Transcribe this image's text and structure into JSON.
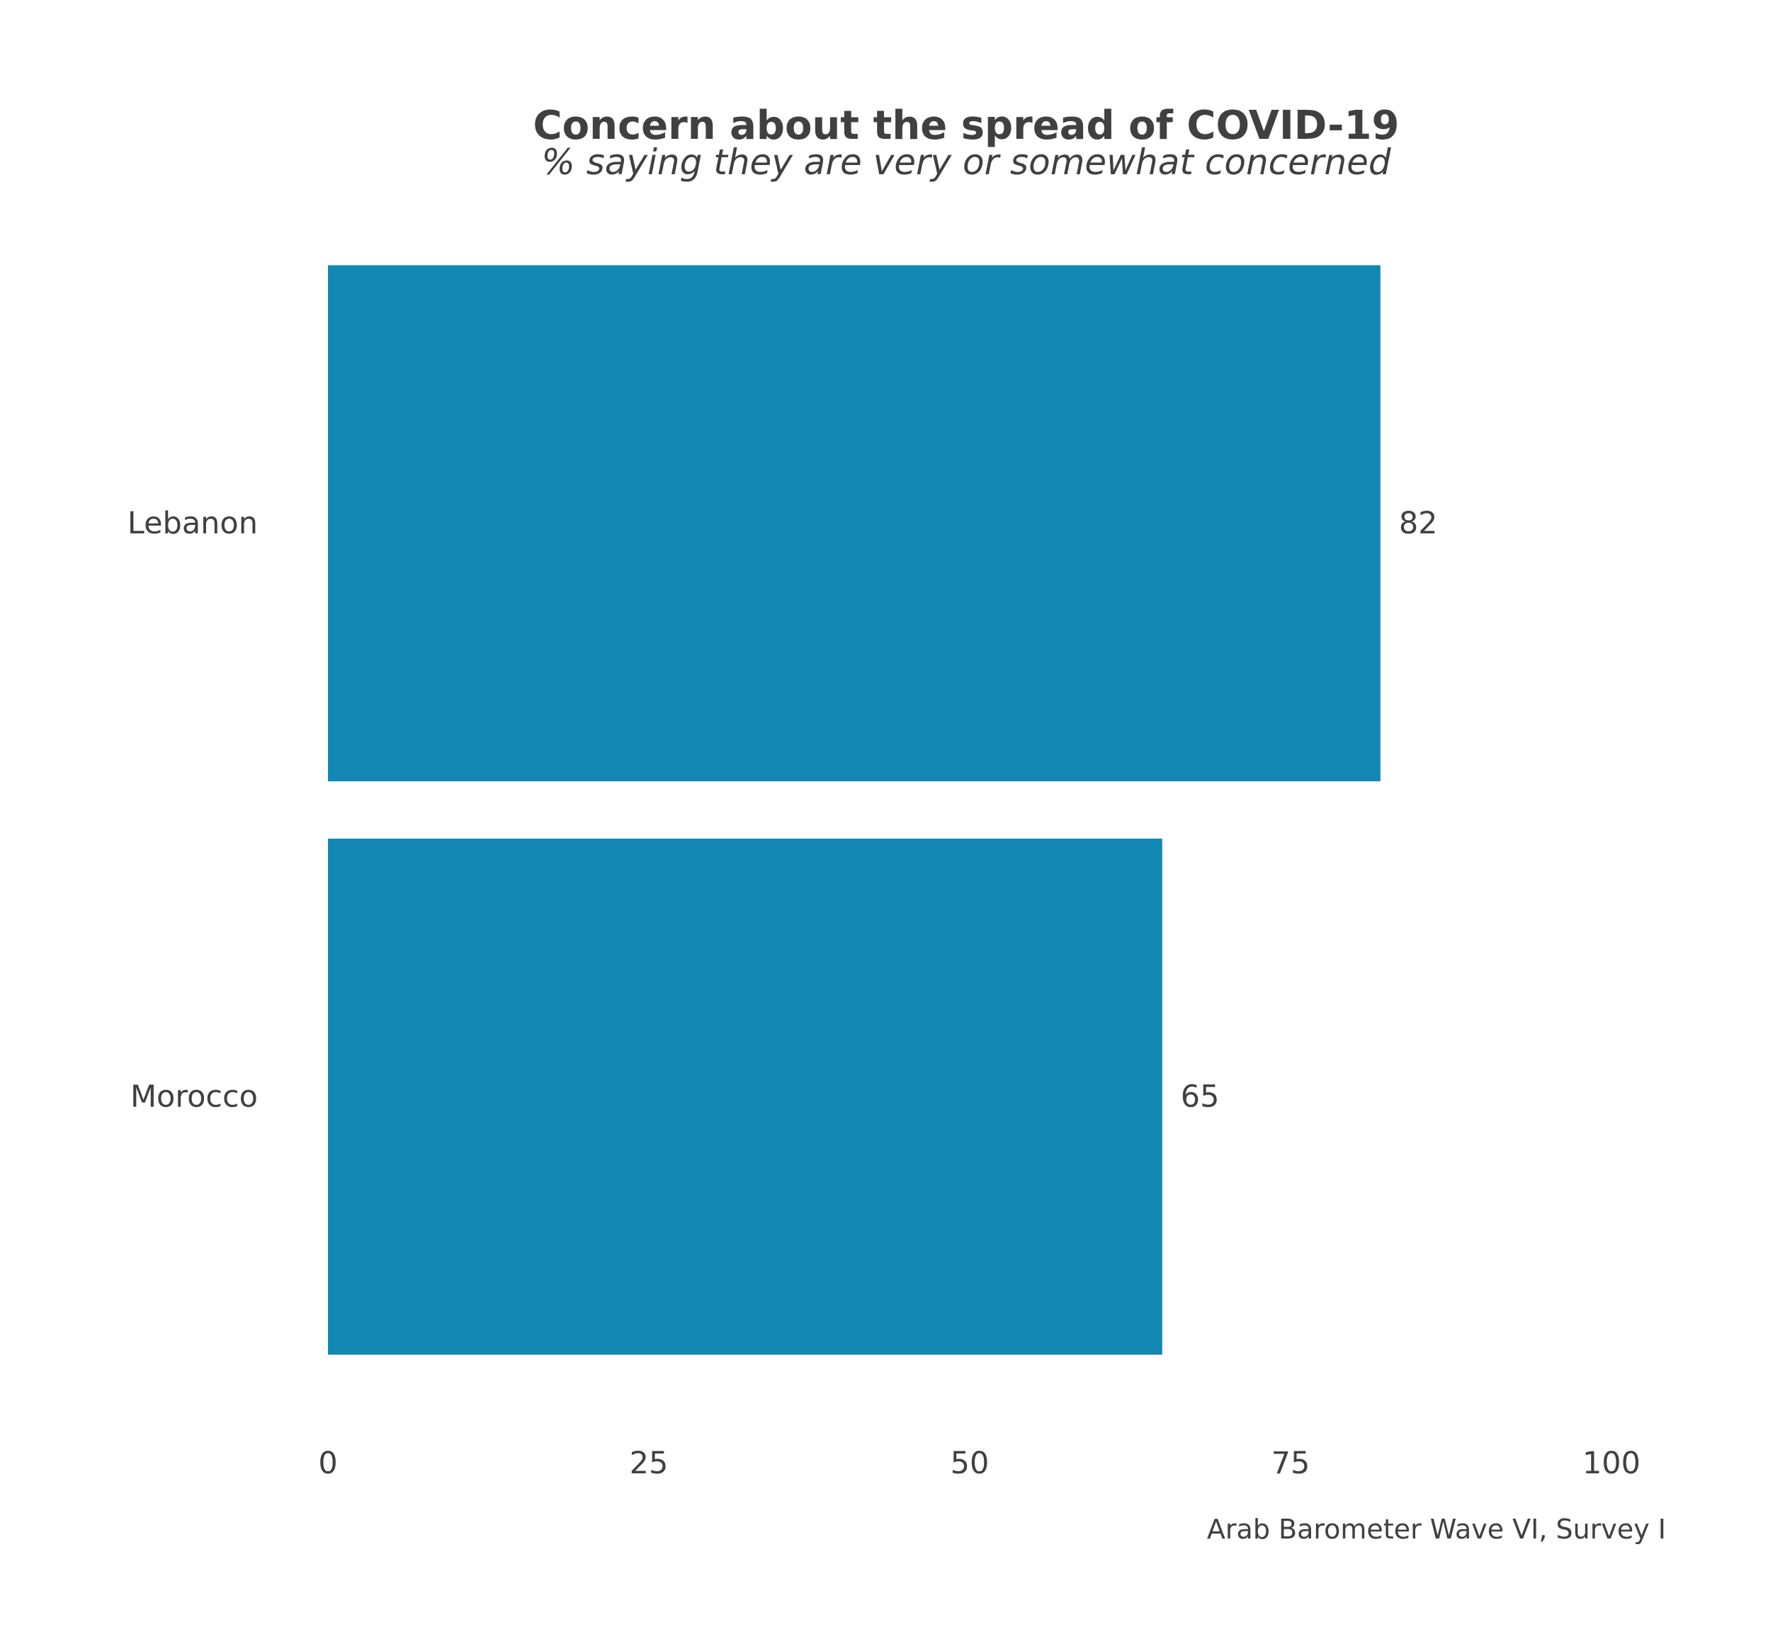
{
  "chart_data": {
    "type": "bar",
    "orientation": "horizontal",
    "title": "Concern about the spread of COVID-19",
    "subtitle": "% saying they are very or somewhat concerned",
    "caption": "Arab Barometer Wave VI, Survey I",
    "categories": [
      "Lebanon",
      "Morocco"
    ],
    "values": [
      82,
      65
    ],
    "value_labels": [
      "82",
      "65"
    ],
    "xlim": [
      0,
      100
    ],
    "x_ticks": [
      0,
      25,
      50,
      75,
      100
    ],
    "x_tick_labels": [
      "0",
      "25",
      "50",
      "75",
      "100"
    ],
    "xlabel": "",
    "ylabel": "",
    "grid": false,
    "legend": "none",
    "bar_color": "#1287B3",
    "text_color": "#404040"
  }
}
